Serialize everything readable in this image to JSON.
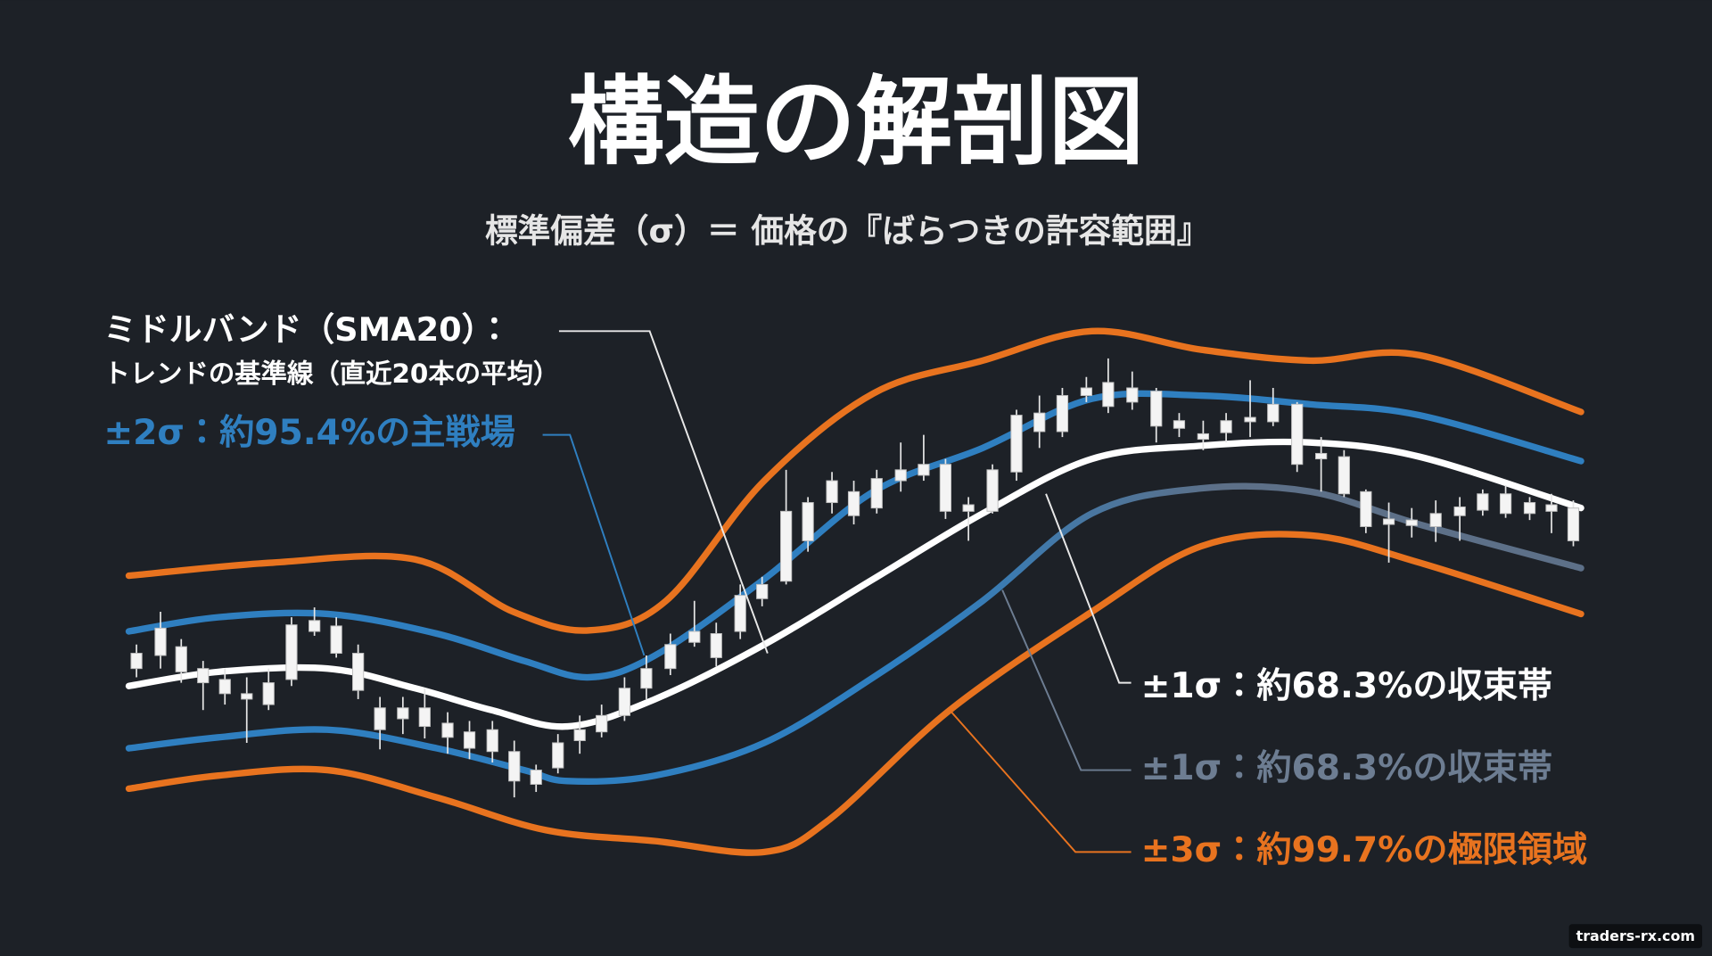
{
  "header": {
    "title": "構造の解剖図",
    "subtitle": "標準偏差（σ）＝ 価格の『ばらつきの許容範囲』"
  },
  "annotations": {
    "middle_band": {
      "title": "ミドルバンド（SMA20）：",
      "description": "トレンドの基準線（直近20本の平均）"
    },
    "sigma2": "±2σ：約95.4%の主戦場",
    "sigma1": "±1σ：約68.3%の収束帯",
    "sigma1_faded": "±1σ：約68.3%の収束帯",
    "sigma3": "±3σ：約99.7%の極限領域"
  },
  "watermark": "traders-rx.com"
}
